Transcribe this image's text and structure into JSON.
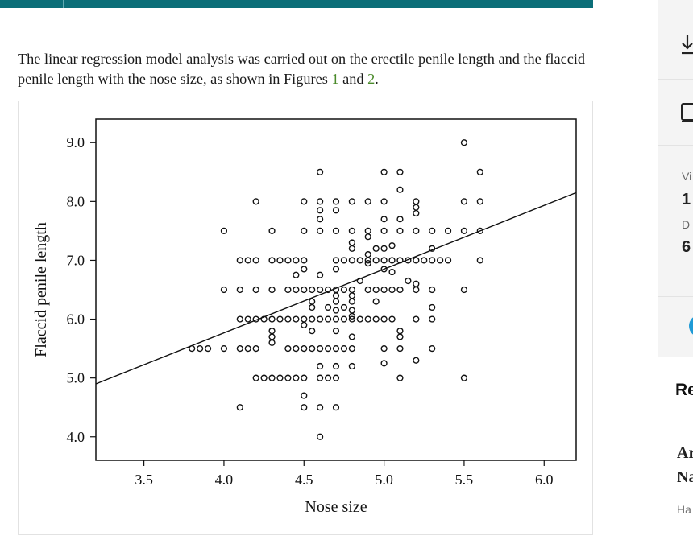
{
  "article": {
    "intro_text": "The linear regression model analysis was carried out on the erectile penile length and the flaccid penile length with the nose size, as shown in Figures ",
    "figure_link_1": "1",
    "and_text": " and ",
    "figure_link_2": "2",
    "period": "."
  },
  "sidebar": {
    "download_icon": "download-icon",
    "screen_icon": "screen-icon",
    "views_label": "Vi",
    "views_value": "1",
    "downloads_label": "D",
    "downloads_value": "6",
    "related_heading": "Re",
    "related_title_line1": "Ar",
    "related_title_line2": "Na",
    "related_author": "Ha"
  },
  "chart_data": {
    "type": "scatter",
    "xlabel": "Nose size",
    "ylabel": "Flaccid penile length",
    "xlim": [
      3.2,
      6.2
    ],
    "ylim": [
      3.6,
      9.4
    ],
    "xticks": [
      "3.5",
      "4.0",
      "4.5",
      "5.0",
      "5.5",
      "6.0"
    ],
    "yticks": [
      "4.0",
      "5.0",
      "6.0",
      "7.0",
      "8.0",
      "9.0"
    ],
    "grid": false,
    "legend": "none",
    "regression_line": {
      "x": [
        3.2,
        6.2
      ],
      "y": [
        4.9,
        8.15
      ]
    },
    "points": [
      [
        3.8,
        5.5
      ],
      [
        3.85,
        5.5
      ],
      [
        3.9,
        5.5
      ],
      [
        4.0,
        5.5
      ],
      [
        4.1,
        5.5
      ],
      [
        4.15,
        5.5
      ],
      [
        4.2,
        5.5
      ],
      [
        4.4,
        5.5
      ],
      [
        4.45,
        5.5
      ],
      [
        4.5,
        5.5
      ],
      [
        4.55,
        5.5
      ],
      [
        4.6,
        5.5
      ],
      [
        4.65,
        5.5
      ],
      [
        4.7,
        5.5
      ],
      [
        4.75,
        5.5
      ],
      [
        4.8,
        5.5
      ],
      [
        5.0,
        5.5
      ],
      [
        5.1,
        5.5
      ],
      [
        5.3,
        5.5
      ],
      [
        4.0,
        6.5
      ],
      [
        4.1,
        6.5
      ],
      [
        4.2,
        6.5
      ],
      [
        4.3,
        6.5
      ],
      [
        4.4,
        6.5
      ],
      [
        4.45,
        6.5
      ],
      [
        4.5,
        6.5
      ],
      [
        4.55,
        6.5
      ],
      [
        4.6,
        6.5
      ],
      [
        4.65,
        6.5
      ],
      [
        4.7,
        6.5
      ],
      [
        4.75,
        6.5
      ],
      [
        4.8,
        6.5
      ],
      [
        4.9,
        6.5
      ],
      [
        4.95,
        6.5
      ],
      [
        5.0,
        6.5
      ],
      [
        5.05,
        6.5
      ],
      [
        5.1,
        6.5
      ],
      [
        5.2,
        6.5
      ],
      [
        5.3,
        6.5
      ],
      [
        5.5,
        6.5
      ],
      [
        4.0,
        7.5
      ],
      [
        4.3,
        7.5
      ],
      [
        4.5,
        7.5
      ],
      [
        4.6,
        7.5
      ],
      [
        4.7,
        7.5
      ],
      [
        4.8,
        7.5
      ],
      [
        4.9,
        7.5
      ],
      [
        5.0,
        7.5
      ],
      [
        5.1,
        7.5
      ],
      [
        5.2,
        7.5
      ],
      [
        5.3,
        7.5
      ],
      [
        5.4,
        7.5
      ],
      [
        5.5,
        7.5
      ],
      [
        5.6,
        7.5
      ],
      [
        4.1,
        7.0
      ],
      [
        4.15,
        7.0
      ],
      [
        4.2,
        7.0
      ],
      [
        4.3,
        7.0
      ],
      [
        4.35,
        7.0
      ],
      [
        4.4,
        7.0
      ],
      [
        4.45,
        7.0
      ],
      [
        4.5,
        7.0
      ],
      [
        4.7,
        7.0
      ],
      [
        4.75,
        7.0
      ],
      [
        4.8,
        7.0
      ],
      [
        4.85,
        7.0
      ],
      [
        4.9,
        7.0
      ],
      [
        4.95,
        7.0
      ],
      [
        5.0,
        7.0
      ],
      [
        5.05,
        7.0
      ],
      [
        5.1,
        7.0
      ],
      [
        5.15,
        7.0
      ],
      [
        5.2,
        7.0
      ],
      [
        5.25,
        7.0
      ],
      [
        5.3,
        7.0
      ],
      [
        5.35,
        7.0
      ],
      [
        5.4,
        7.0
      ],
      [
        5.6,
        7.0
      ],
      [
        4.1,
        6.0
      ],
      [
        4.15,
        6.0
      ],
      [
        4.2,
        6.0
      ],
      [
        4.25,
        6.0
      ],
      [
        4.3,
        6.0
      ],
      [
        4.35,
        6.0
      ],
      [
        4.4,
        6.0
      ],
      [
        4.45,
        6.0
      ],
      [
        4.5,
        6.0
      ],
      [
        4.55,
        6.0
      ],
      [
        4.6,
        6.0
      ],
      [
        4.65,
        6.0
      ],
      [
        4.7,
        6.0
      ],
      [
        4.75,
        6.0
      ],
      [
        4.8,
        6.0
      ],
      [
        4.85,
        6.0
      ],
      [
        4.9,
        6.0
      ],
      [
        4.95,
        6.0
      ],
      [
        5.0,
        6.0
      ],
      [
        5.05,
        6.0
      ],
      [
        5.2,
        6.0
      ],
      [
        5.3,
        6.0
      ],
      [
        4.2,
        5.0
      ],
      [
        4.25,
        5.0
      ],
      [
        4.3,
        5.0
      ],
      [
        4.35,
        5.0
      ],
      [
        4.4,
        5.0
      ],
      [
        4.45,
        5.0
      ],
      [
        4.5,
        5.0
      ],
      [
        4.6,
        5.0
      ],
      [
        4.65,
        5.0
      ],
      [
        4.7,
        5.0
      ],
      [
        5.1,
        5.0
      ],
      [
        5.5,
        5.0
      ],
      [
        4.6,
        5.2
      ],
      [
        4.7,
        5.2
      ],
      [
        4.8,
        5.2
      ],
      [
        5.0,
        5.25
      ],
      [
        5.2,
        5.3
      ],
      [
        4.2,
        8.0
      ],
      [
        4.5,
        8.0
      ],
      [
        4.6,
        8.0
      ],
      [
        4.7,
        8.0
      ],
      [
        4.8,
        8.0
      ],
      [
        4.9,
        8.0
      ],
      [
        5.0,
        8.0
      ],
      [
        5.2,
        8.0
      ],
      [
        5.5,
        8.0
      ],
      [
        5.6,
        8.0
      ],
      [
        4.6,
        7.7
      ],
      [
        4.6,
        7.85
      ],
      [
        4.7,
        7.85
      ],
      [
        5.0,
        7.7
      ],
      [
        5.1,
        7.7
      ],
      [
        5.2,
        7.8
      ],
      [
        5.2,
        7.9
      ],
      [
        4.6,
        8.5
      ],
      [
        5.0,
        8.5
      ],
      [
        5.1,
        8.5
      ],
      [
        5.6,
        8.5
      ],
      [
        5.1,
        8.2
      ],
      [
        5.5,
        9.0
      ],
      [
        4.1,
        4.5
      ],
      [
        4.5,
        4.5
      ],
      [
        4.6,
        4.5
      ],
      [
        4.7,
        4.5
      ],
      [
        4.5,
        4.7
      ],
      [
        4.6,
        4.0
      ],
      [
        4.3,
        5.6
      ],
      [
        4.3,
        5.7
      ],
      [
        4.3,
        5.8
      ],
      [
        4.55,
        6.2
      ],
      [
        4.55,
        6.3
      ],
      [
        4.65,
        6.2
      ],
      [
        4.7,
        6.3
      ],
      [
        4.7,
        6.15
      ],
      [
        4.7,
        6.4
      ],
      [
        4.75,
        6.2
      ],
      [
        4.8,
        6.3
      ],
      [
        4.8,
        6.15
      ],
      [
        4.8,
        6.4
      ],
      [
        4.45,
        6.75
      ],
      [
        4.5,
        6.85
      ],
      [
        4.6,
        6.75
      ],
      [
        4.7,
        6.85
      ],
      [
        4.85,
        6.65
      ],
      [
        4.9,
        6.95
      ],
      [
        4.95,
        7.2
      ],
      [
        5.0,
        7.2
      ],
      [
        5.05,
        6.8
      ],
      [
        5.15,
        6.65
      ],
      [
        5.2,
        6.6
      ],
      [
        5.3,
        7.2
      ],
      [
        4.8,
        7.2
      ],
      [
        4.8,
        7.3
      ],
      [
        4.9,
        7.1
      ],
      [
        5.05,
        7.25
      ],
      [
        4.9,
        7.4
      ],
      [
        5.0,
        6.85
      ],
      [
        4.55,
        5.8
      ],
      [
        4.7,
        5.8
      ],
      [
        4.8,
        5.7
      ],
      [
        5.1,
        5.7
      ],
      [
        5.1,
        5.8
      ],
      [
        5.3,
        6.2
      ],
      [
        4.95,
        6.3
      ],
      [
        4.5,
        5.9
      ],
      [
        4.8,
        6.05
      ]
    ]
  }
}
